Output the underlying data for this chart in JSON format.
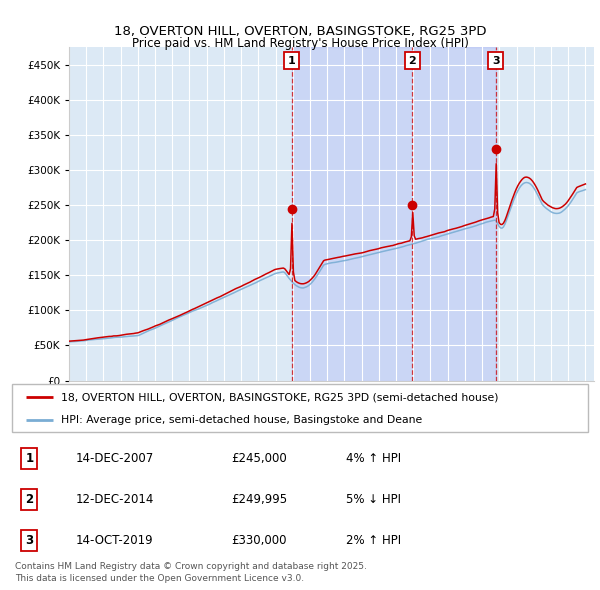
{
  "title_line1": "18, OVERTON HILL, OVERTON, BASINGSTOKE, RG25 3PD",
  "title_line2": "Price paid vs. HM Land Registry's House Price Index (HPI)",
  "ytick_values": [
    0,
    50000,
    100000,
    150000,
    200000,
    250000,
    300000,
    350000,
    400000,
    450000
  ],
  "background_color": "#dce9f5",
  "red_line_color": "#cc0000",
  "blue_line_color": "#7aadd4",
  "grid_color": "#ffffff",
  "transaction_markers": [
    {
      "label": "1",
      "date_str": "14-DEC-2007",
      "year": 2007.95,
      "price": 245000
    },
    {
      "label": "2",
      "date_str": "12-DEC-2014",
      "year": 2014.95,
      "price": 249995
    },
    {
      "label": "3",
      "date_str": "14-OCT-2019",
      "year": 2019.79,
      "price": 330000
    }
  ],
  "legend_line1": "18, OVERTON HILL, OVERTON, BASINGSTOKE, RG25 3PD (semi-detached house)",
  "legend_line2": "HPI: Average price, semi-detached house, Basingstoke and Deane",
  "footnote": "Contains HM Land Registry data © Crown copyright and database right 2025.\nThis data is licensed under the Open Government Licence v3.0.",
  "table_rows": [
    {
      "label": "1",
      "date": "14-DEC-2007",
      "price": "£245,000",
      "pct_hpi": "4% ↑ HPI"
    },
    {
      "label": "2",
      "date": "12-DEC-2014",
      "price": "£249,995",
      "pct_hpi": "5% ↓ HPI"
    },
    {
      "label": "3",
      "date": "14-OCT-2019",
      "price": "£330,000",
      "pct_hpi": "2% ↑ HPI"
    }
  ]
}
